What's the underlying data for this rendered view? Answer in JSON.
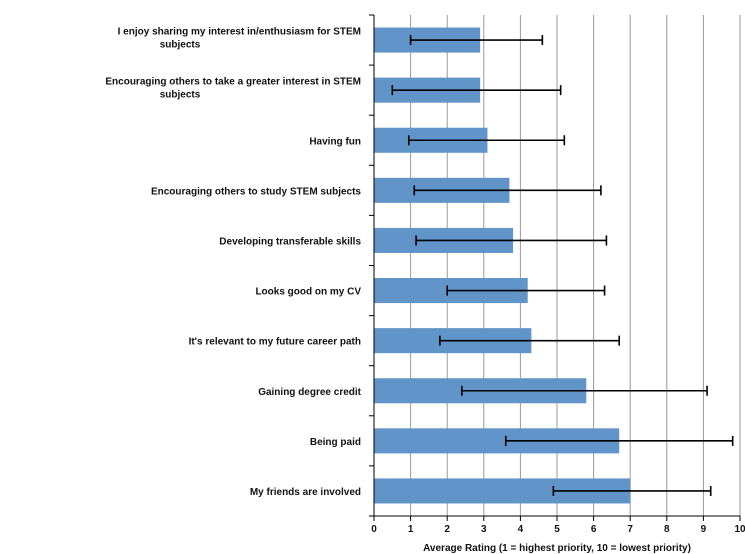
{
  "chart_data": {
    "type": "bar",
    "orientation": "horizontal",
    "categories": [
      [
        "I enjoy sharing my interest in/enthusiasm for STEM",
        "subjects"
      ],
      [
        "Encouraging others to take a greater interest in STEM",
        "subjects"
      ],
      [
        "Having fun"
      ],
      [
        "Encouraging others to study STEM subjects"
      ],
      [
        "Developing transferable skills"
      ],
      [
        "Looks good on my CV"
      ],
      [
        "It's relevant to my future career path"
      ],
      [
        "Gaining degree credit"
      ],
      [
        "Being paid"
      ],
      [
        "My friends are involved"
      ]
    ],
    "values": [
      2.9,
      2.9,
      3.1,
      3.7,
      3.8,
      4.2,
      4.3,
      5.8,
      6.7,
      7.0
    ],
    "error_low": [
      1.0,
      0.5,
      0.95,
      1.1,
      1.15,
      2.0,
      1.8,
      2.4,
      3.6,
      4.9
    ],
    "error_high": [
      4.6,
      5.1,
      5.2,
      6.2,
      6.35,
      6.3,
      6.7,
      9.1,
      9.8,
      9.2
    ],
    "xlim": [
      0,
      10
    ],
    "xticks": [
      "0",
      "1",
      "2",
      "3",
      "4",
      "5",
      "6",
      "7",
      "8",
      "9",
      "10"
    ],
    "xlabel": "Average Rating (1 = highest priority, 10 = lowest priority)",
    "grid": "vertical",
    "bar_color": "#6194c9",
    "grid_color": "#999999"
  }
}
